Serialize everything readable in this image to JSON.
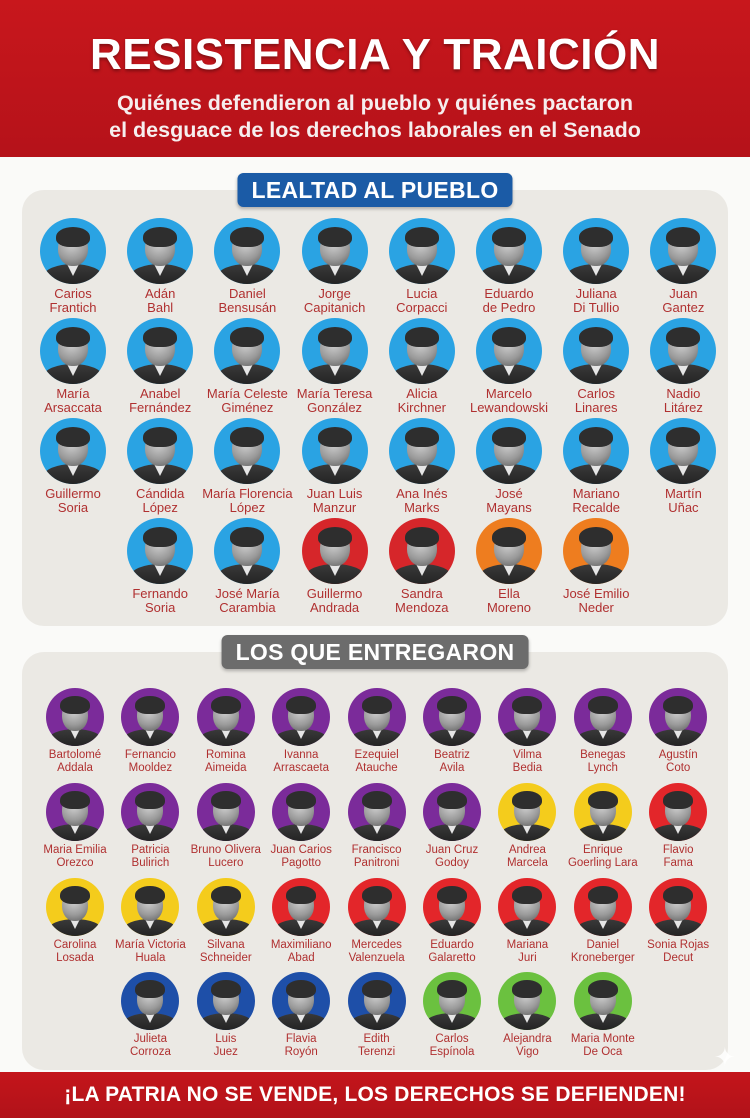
{
  "header": {
    "title": "RESISTENCIA Y TRAICIÓN",
    "subtitle_line1": "Quiénes defendieron al pueblo y quiénes pactaron",
    "subtitle_line2": "el desguace de los derechos laborales en el Senado"
  },
  "colors": {
    "header_red": "#c8171c",
    "name_red": "#b03030",
    "badge_blue": "#1b5ba6",
    "badge_gray": "#6c6c6c",
    "panel_bg": "#ebe9e4",
    "ring_blue": "#2aa3e3",
    "ring_red": "#d6262a",
    "ring_orange": "#ee7d1f",
    "ring_purple": "#7b2b9a",
    "ring_yellow": "#f4cc1c",
    "ring_red2": "#e3262a",
    "ring_navy": "#1e4fa8",
    "ring_green": "#6bc13f"
  },
  "section_loyal": {
    "label": "LEALTAD AL PUEBLO",
    "people": [
      {
        "first": "Carios",
        "last": "Frantich",
        "color": "#2aa3e3"
      },
      {
        "first": "Adán",
        "last": "Bahl",
        "color": "#2aa3e3"
      },
      {
        "first": "Daniel",
        "last": "Bensusán",
        "color": "#2aa3e3"
      },
      {
        "first": "Jorge",
        "last": "Capitanich",
        "color": "#2aa3e3"
      },
      {
        "first": "Lucia",
        "last": "Corpacci",
        "color": "#2aa3e3"
      },
      {
        "first": "Eduardo",
        "last": "de Pedro",
        "color": "#2aa3e3"
      },
      {
        "first": "Juliana",
        "last": "Di Tullio",
        "color": "#2aa3e3"
      },
      {
        "first": "Juan",
        "last": "Gantez",
        "color": "#2aa3e3"
      },
      {
        "first": "María",
        "last": "Arsaccata",
        "color": "#2aa3e3"
      },
      {
        "first": "Anabel",
        "last": "Fernández",
        "color": "#2aa3e3"
      },
      {
        "first": "María Celeste",
        "last": "Giménez",
        "color": "#2aa3e3"
      },
      {
        "first": "María Teresa",
        "last": "González",
        "color": "#2aa3e3"
      },
      {
        "first": "Alicia",
        "last": "Kirchner",
        "color": "#2aa3e3"
      },
      {
        "first": "Marcelo",
        "last": "Lewandowski",
        "color": "#2aa3e3"
      },
      {
        "first": "Carlos",
        "last": "Linares",
        "color": "#2aa3e3"
      },
      {
        "first": "Nadio",
        "last": "Litárez",
        "color": "#2aa3e3"
      },
      {
        "first": "Guillermo",
        "last": "Soria",
        "color": "#2aa3e3"
      },
      {
        "first": "Cándida",
        "last": "López",
        "color": "#2aa3e3"
      },
      {
        "first": "María Florencia",
        "last": "López",
        "color": "#2aa3e3"
      },
      {
        "first": "Juan Luis",
        "last": "Manzur",
        "color": "#2aa3e3"
      },
      {
        "first": "Ana Inés",
        "last": "Marks",
        "color": "#2aa3e3"
      },
      {
        "first": "José",
        "last": "Mayans",
        "color": "#2aa3e3"
      },
      {
        "first": "Mariano",
        "last": "Recalde",
        "color": "#2aa3e3"
      },
      {
        "first": "Martín",
        "last": "Uñac",
        "color": "#2aa3e3"
      },
      {
        "first": "Fernando",
        "last": "Soria",
        "color": "#2aa3e3"
      },
      {
        "first": "José María",
        "last": "Carambia",
        "color": "#2aa3e3"
      },
      {
        "first": "Guillermo",
        "last": "Andrada",
        "color": "#d6262a"
      },
      {
        "first": "Sandra",
        "last": "Mendoza",
        "color": "#d6262a"
      },
      {
        "first": "Ella",
        "last": "Moreno",
        "color": "#ee7d1f"
      },
      {
        "first": "José Emilio",
        "last": "Neder",
        "color": "#ee7d1f"
      }
    ]
  },
  "section_traitors": {
    "label": "LOS QUE ENTREGARON",
    "people": [
      {
        "first": "Bartolomé",
        "last": "Addala",
        "color": "#7b2b9a"
      },
      {
        "first": "Fernancio",
        "last": "Mooldez",
        "color": "#7b2b9a"
      },
      {
        "first": "Romina",
        "last": "Aimeida",
        "color": "#7b2b9a"
      },
      {
        "first": "Ivanna",
        "last": "Arrascaeta",
        "color": "#7b2b9a"
      },
      {
        "first": "Ezequiel",
        "last": "Atauche",
        "color": "#7b2b9a"
      },
      {
        "first": "Beatriz",
        "last": "Avila",
        "color": "#7b2b9a"
      },
      {
        "first": "Vilma",
        "last": "Bedia",
        "color": "#7b2b9a"
      },
      {
        "first": "Benegas",
        "last": "Lynch",
        "color": "#7b2b9a"
      },
      {
        "first": "Agustín",
        "last": "Coto",
        "color": "#7b2b9a"
      },
      {
        "first": "Maria Emilia",
        "last": "Orezco",
        "color": "#7b2b9a"
      },
      {
        "first": "Patricia",
        "last": "Bulirich",
        "color": "#7b2b9a"
      },
      {
        "first": "Bruno Olivera",
        "last": "Lucero",
        "color": "#7b2b9a"
      },
      {
        "first": "Juan Carios",
        "last": "Pagotto",
        "color": "#7b2b9a"
      },
      {
        "first": "Francisco",
        "last": "Panitroni",
        "color": "#7b2b9a"
      },
      {
        "first": "Juan Cruz",
        "last": "Godoy",
        "color": "#7b2b9a"
      },
      {
        "first": "Andrea",
        "last": "Marcela",
        "color": "#f4cc1c"
      },
      {
        "first": "Enrique",
        "last": "Goerling Lara",
        "color": "#f4cc1c"
      },
      {
        "first": "Flavio",
        "last": "Fama",
        "color": "#e3262a"
      },
      {
        "first": "Carolina",
        "last": "Losada",
        "color": "#f4cc1c"
      },
      {
        "first": "María Victoria",
        "last": "Huala",
        "color": "#f4cc1c"
      },
      {
        "first": "Silvana",
        "last": "Schneider",
        "color": "#f4cc1c"
      },
      {
        "first": "Maximiliano",
        "last": "Abad",
        "color": "#e3262a"
      },
      {
        "first": "Mercedes",
        "last": "Valenzuela",
        "color": "#e3262a"
      },
      {
        "first": "Eduardo",
        "last": "Galaretto",
        "color": "#e3262a"
      },
      {
        "first": "Mariana",
        "last": "Juri",
        "color": "#e3262a"
      },
      {
        "first": "Daniel",
        "last": "Kroneberger",
        "color": "#e3262a"
      },
      {
        "first": "Sonia Rojas",
        "last": "Decut",
        "color": "#e3262a"
      },
      {
        "first": "Julieta",
        "last": "Corroza",
        "color": "#1e4fa8"
      },
      {
        "first": "Luis",
        "last": "Juez",
        "color": "#1e4fa8"
      },
      {
        "first": "Flavia",
        "last": "Royón",
        "color": "#1e4fa8"
      },
      {
        "first": "Edith",
        "last": "Terenzi",
        "color": "#1e4fa8"
      },
      {
        "first": "Carlos",
        "last": "Espínola",
        "color": "#6bc13f"
      },
      {
        "first": "Alejandra",
        "last": "Vigo",
        "color": "#6bc13f"
      },
      {
        "first": "Maria Monte",
        "last": "De Oca",
        "color": "#6bc13f"
      }
    ]
  },
  "footer": {
    "slogan": "¡LA PATRIA NO SE VENDE, LOS DERECHOS SE DEFIENDEN!"
  },
  "icons": {
    "sparkle": "✦"
  }
}
